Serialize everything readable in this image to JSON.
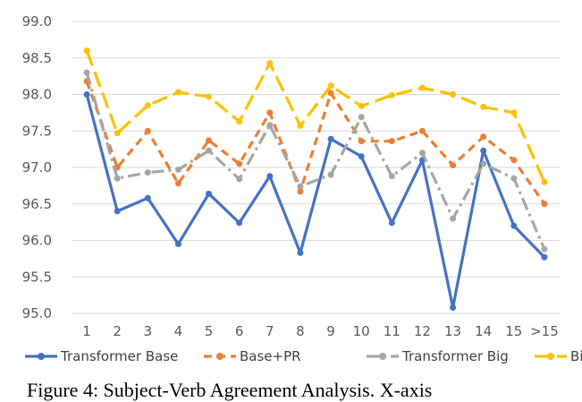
{
  "chart_data": {
    "type": "line",
    "categories": [
      "1",
      "2",
      "3",
      "4",
      "5",
      "6",
      "7",
      "8",
      "9",
      "10",
      "11",
      "12",
      "13",
      "14",
      "15",
      ">15"
    ],
    "ylim": [
      95.0,
      99.0
    ],
    "yticks": [
      "95.0",
      "95.5",
      "96.0",
      "96.5",
      "97.0",
      "97.5",
      "98.0",
      "98.5",
      "99.0"
    ],
    "grid": true,
    "legend_position": "bottom",
    "series": [
      {
        "name": "Transformer Base",
        "color": "#4472C4",
        "dash": "solid",
        "values": [
          98.0,
          96.4,
          96.58,
          95.95,
          96.64,
          96.24,
          96.88,
          95.83,
          97.39,
          97.15,
          96.24,
          97.1,
          95.08,
          97.23,
          96.2,
          95.77
        ]
      },
      {
        "name": "Base+PR",
        "color": "#ED7D31",
        "dash": "dash",
        "values": [
          98.18,
          97.0,
          97.5,
          96.78,
          97.37,
          97.05,
          97.75,
          96.67,
          98.02,
          97.36,
          97.36,
          97.5,
          97.03,
          97.42,
          97.1,
          96.5
        ]
      },
      {
        "name": "Transformer Big",
        "color": "#A5A5A5",
        "dash": "dashdot",
        "values": [
          98.3,
          96.85,
          96.93,
          96.97,
          97.23,
          96.84,
          97.58,
          96.74,
          96.9,
          97.69,
          96.88,
          97.2,
          96.3,
          97.05,
          96.85,
          95.88
        ]
      },
      {
        "name": "Big+PR",
        "color": "#FFC000",
        "dash": "longdash",
        "values": [
          98.6,
          97.47,
          97.85,
          98.03,
          97.97,
          97.63,
          98.43,
          97.57,
          98.12,
          97.84,
          97.99,
          98.09,
          98.0,
          97.83,
          97.75,
          96.8
        ]
      }
    ]
  },
  "caption": "Figure 4: Subject-Verb Agreement Analysis. X-axis"
}
